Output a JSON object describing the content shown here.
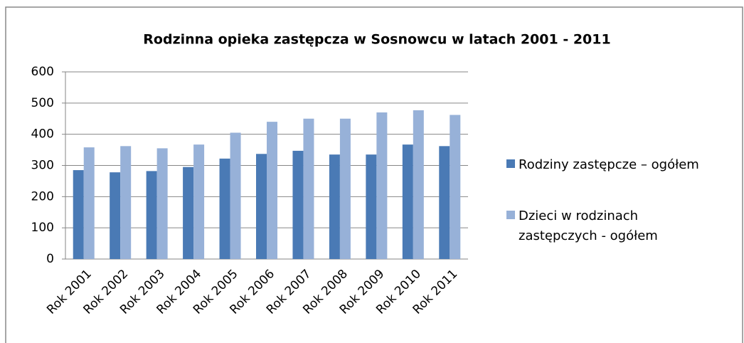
{
  "chart_data": {
    "type": "bar",
    "title": "Rodzinna opieka zastępcza  w Sosnowcu w latach 2001 - 2011",
    "categories": [
      "Rok 2001",
      "Rok 2002",
      "Rok 2003",
      "Rok 2004",
      "Rok 2005",
      "Rok 2006",
      "Rok 2007",
      "Rok 2008",
      "Rok 2009",
      "Rok 2010",
      "Rok 2011"
    ],
    "series": [
      {
        "name": "Rodziny zastępcze – ogółem",
        "color": "#4a7ab5",
        "values": [
          285,
          278,
          282,
          295,
          322,
          337,
          347,
          335,
          335,
          367,
          362
        ]
      },
      {
        "name": "Dzieci w rodzinach zastępczych - ogółem",
        "color": "#97b1d8",
        "values": [
          358,
          362,
          355,
          367,
          405,
          440,
          450,
          450,
          470,
          477,
          462
        ]
      }
    ],
    "ylim": [
      0,
      600
    ],
    "yticks": [
      0,
      100,
      200,
      300,
      400,
      500,
      600
    ],
    "grid": true,
    "legend": "right"
  }
}
